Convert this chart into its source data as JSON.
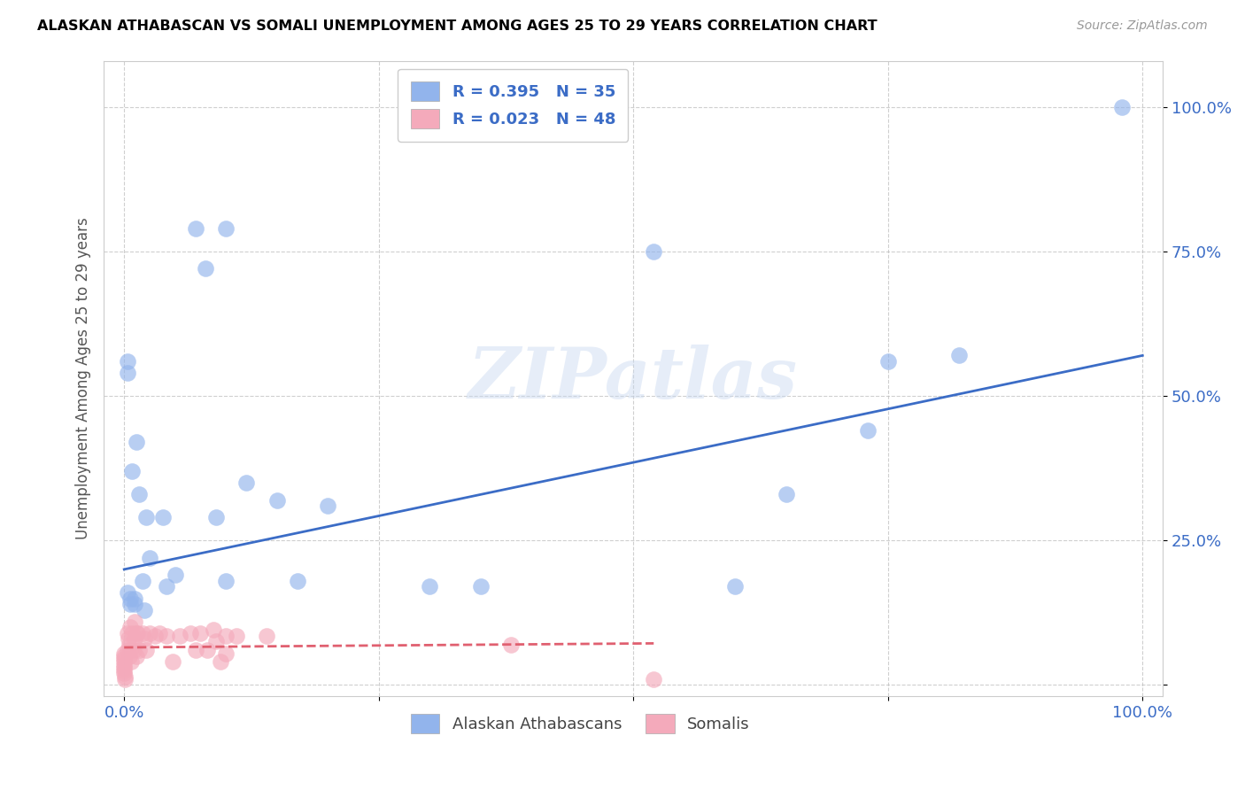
{
  "title": "ALASKAN ATHABASCAN VS SOMALI UNEMPLOYMENT AMONG AGES 25 TO 29 YEARS CORRELATION CHART",
  "source": "Source: ZipAtlas.com",
  "ylabel": "Unemployment Among Ages 25 to 29 years",
  "xlim": [
    -0.02,
    1.02
  ],
  "ylim": [
    -0.02,
    1.08
  ],
  "xtick_positions": [
    0.0,
    0.25,
    0.5,
    0.75,
    1.0
  ],
  "xticklabels": [
    "0.0%",
    "",
    "",
    "",
    "100.0%"
  ],
  "ytick_positions": [
    0.0,
    0.25,
    0.5,
    0.75,
    1.0
  ],
  "yticklabels_right": [
    "",
    "25.0%",
    "50.0%",
    "75.0%",
    "100.0%"
  ],
  "athabascan_color": "#92B4EC",
  "somali_color": "#F4AABB",
  "athabascan_line_color": "#3B6CC6",
  "somali_line_color": "#E06070",
  "legend_R_athabascan": "R = 0.395",
  "legend_N_athabascan": "N = 35",
  "legend_R_somali": "R = 0.023",
  "legend_N_somali": "N = 48",
  "watermark": "ZIPatlas",
  "athabascan_x": [
    0.003,
    0.003,
    0.003,
    0.006,
    0.006,
    0.008,
    0.01,
    0.01,
    0.012,
    0.015,
    0.018,
    0.02,
    0.022,
    0.025,
    0.038,
    0.042,
    0.05,
    0.07,
    0.08,
    0.09,
    0.1,
    0.1,
    0.12,
    0.15,
    0.17,
    0.2,
    0.3,
    0.35,
    0.52,
    0.6,
    0.65,
    0.73,
    0.75,
    0.82,
    0.98
  ],
  "athabascan_y": [
    0.56,
    0.54,
    0.16,
    0.15,
    0.14,
    0.37,
    0.15,
    0.14,
    0.42,
    0.33,
    0.18,
    0.13,
    0.29,
    0.22,
    0.29,
    0.17,
    0.19,
    0.79,
    0.72,
    0.29,
    0.79,
    0.18,
    0.35,
    0.32,
    0.18,
    0.31,
    0.17,
    0.17,
    0.75,
    0.17,
    0.33,
    0.44,
    0.56,
    0.57,
    1.0
  ],
  "somali_x": [
    0.0,
    0.0,
    0.0,
    0.0,
    0.0,
    0.0,
    0.0,
    0.0,
    0.001,
    0.001,
    0.003,
    0.003,
    0.004,
    0.005,
    0.005,
    0.006,
    0.006,
    0.007,
    0.008,
    0.009,
    0.01,
    0.01,
    0.012,
    0.012,
    0.013,
    0.015,
    0.018,
    0.02,
    0.022,
    0.025,
    0.03,
    0.035,
    0.042,
    0.048,
    0.055,
    0.065,
    0.07,
    0.075,
    0.082,
    0.088,
    0.09,
    0.095,
    0.1,
    0.1,
    0.11,
    0.14,
    0.38,
    0.52
  ],
  "somali_y": [
    0.055,
    0.05,
    0.045,
    0.04,
    0.035,
    0.03,
    0.025,
    0.02,
    0.015,
    0.01,
    0.09,
    0.06,
    0.08,
    0.07,
    0.05,
    0.1,
    0.06,
    0.04,
    0.09,
    0.06,
    0.11,
    0.08,
    0.09,
    0.05,
    0.09,
    0.06,
    0.09,
    0.08,
    0.06,
    0.09,
    0.085,
    0.09,
    0.085,
    0.04,
    0.085,
    0.09,
    0.06,
    0.09,
    0.06,
    0.095,
    0.075,
    0.04,
    0.085,
    0.055,
    0.085,
    0.085,
    0.07,
    0.01
  ],
  "athabascan_trend_x": [
    0.0,
    1.0
  ],
  "athabascan_trend_y": [
    0.2,
    0.57
  ],
  "somali_trend_x": [
    0.0,
    0.52
  ],
  "somali_trend_y": [
    0.065,
    0.072
  ]
}
